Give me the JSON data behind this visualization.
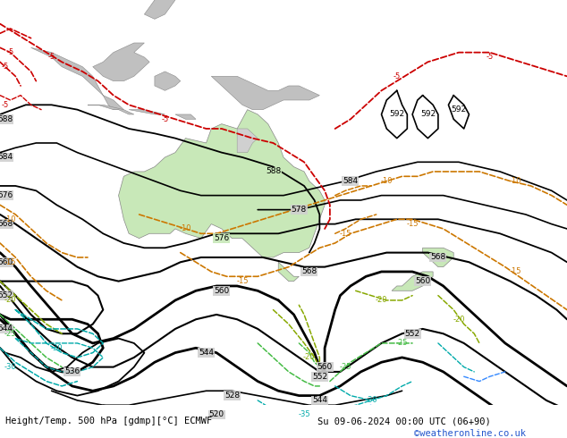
{
  "title_left": "Height/Temp. 500 hPa [gdmp][°C] ECMWF",
  "title_right": "Su 09-06-2024 00:00 UTC (06+90)",
  "watermark": "©weatheronline.co.uk",
  "ocean_color": "#d0d0d0",
  "land_color": "#c0c0c0",
  "aus_color": "#c8e8b8",
  "white": "#ffffff",
  "fig_width": 6.34,
  "fig_height": 4.9,
  "dpi": 100
}
